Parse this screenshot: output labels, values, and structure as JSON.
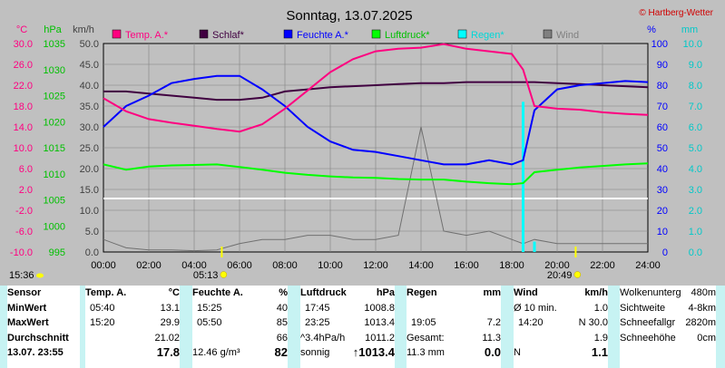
{
  "header": {
    "title": "Sonntag, 13.07.2025",
    "copyright": "© Hartberg-Wetter"
  },
  "axes_units": {
    "temp": "°C",
    "hpa": "hPa",
    "kmh": "km/h",
    "pct": "%",
    "mm": "mm"
  },
  "legend": [
    {
      "label": "Temp. A.*",
      "color": "#ff0080"
    },
    {
      "label": "Schlaf*",
      "color": "#400040"
    },
    {
      "label": "Feuchte A.*",
      "color": "#0000ff"
    },
    {
      "label": "Luftdruck*",
      "color": "#00ff00"
    },
    {
      "label": "Regen*",
      "color": "#00ffff"
    },
    {
      "label": "Wind",
      "color": "#808080"
    }
  ],
  "ticks": {
    "temp": [
      "30.0",
      "26.0",
      "22.0",
      "18.0",
      "14.0",
      "10.0",
      "6.0",
      "2.0",
      "-2.0",
      "-6.0",
      "-10.0"
    ],
    "hpa": [
      "1035",
      "1030",
      "1025",
      "1020",
      "1015",
      "1010",
      "1005",
      "1000",
      "995"
    ],
    "kmh": [
      "50.0",
      "45.0",
      "40.0",
      "35.0",
      "30.0",
      "25.0",
      "20.0",
      "15.0",
      "10.0",
      "5.0",
      "0.0"
    ],
    "pct": [
      "100",
      "90",
      "80",
      "70",
      "60",
      "50",
      "40",
      "30",
      "20",
      "10",
      "0"
    ],
    "mm": [
      "10.0",
      "9.0",
      "8.0",
      "7.0",
      "6.0",
      "5.0",
      "4.0",
      "3.0",
      "2.0",
      "1.0",
      "0.0"
    ],
    "x": [
      "00:00",
      "02:00",
      "04:00",
      "06:00",
      "08:00",
      "10:00",
      "12:00",
      "14:00",
      "16:00",
      "18:00",
      "20:00",
      "22:00",
      "24:00"
    ]
  },
  "sun": {
    "sunrise": "05:13",
    "sunset": "20:49",
    "moon": "15:36"
  },
  "chart_data": {
    "type": "line",
    "x_hours": [
      0,
      1,
      2,
      3,
      4,
      5,
      6,
      7,
      8,
      9,
      10,
      11,
      12,
      13,
      14,
      15,
      16,
      17,
      18,
      18.5,
      19,
      20,
      21,
      22,
      23,
      24
    ],
    "series": [
      {
        "name": "Temp. A.*",
        "unit": "°C",
        "values": [
          19.5,
          17.0,
          15.5,
          14.8,
          14.2,
          13.6,
          13.1,
          14.5,
          17.5,
          21.0,
          24.5,
          27.0,
          28.5,
          29.0,
          29.2,
          29.9,
          29.0,
          28.5,
          28.0,
          25.0,
          18.0,
          17.5,
          17.3,
          16.8,
          16.5,
          16.3
        ]
      },
      {
        "name": "Schlaf*",
        "unit": "%",
        "values": [
          77,
          77,
          76,
          75,
          74,
          73,
          73,
          74,
          77,
          78,
          79,
          79.5,
          80,
          80.5,
          81,
          81,
          81.5,
          81.5,
          81.5,
          81.5,
          81.5,
          81,
          80.5,
          80,
          79.5,
          79
        ]
      },
      {
        "name": "Feuchte A.*",
        "unit": "%",
        "values": [
          60,
          70,
          75,
          81,
          83,
          84.5,
          84.5,
          78,
          70,
          60,
          53,
          49,
          48,
          46,
          44,
          42,
          42,
          44,
          42,
          44,
          68,
          78,
          80,
          81,
          82,
          81.5
        ]
      },
      {
        "name": "Luftdruck*",
        "unit": "hPa",
        "values": [
          1011.8,
          1010.8,
          1011.4,
          1011.6,
          1011.7,
          1011.8,
          1011.3,
          1010.8,
          1010.2,
          1009.8,
          1009.5,
          1009.3,
          1009.2,
          1009.0,
          1008.9,
          1008.9,
          1008.5,
          1008.2,
          1008.0,
          1008.2,
          1010.3,
          1010.8,
          1011.2,
          1011.5,
          1011.8,
          1012.0
        ]
      },
      {
        "name": "Regen*",
        "unit": "mm",
        "values": [
          0,
          0,
          0,
          0,
          0,
          0,
          0,
          0,
          0,
          0,
          0,
          0,
          0,
          0,
          0,
          0,
          0,
          0,
          0,
          7.2,
          0.5,
          0,
          0,
          0,
          0,
          0
        ]
      },
      {
        "name": "Wind",
        "unit": "km/h",
        "values": [
          3,
          1,
          0.5,
          0.5,
          0.3,
          0.5,
          2,
          3,
          3,
          4,
          4,
          3,
          3,
          4,
          30,
          5,
          4,
          5,
          3,
          2,
          3,
          2,
          2,
          2,
          2,
          2
        ]
      }
    ]
  },
  "table": {
    "sensor": {
      "title": "Sensor",
      "min": "MinWert",
      "max": "MaxWert",
      "avg": "Durchschnitt",
      "now": "13.07. 23:55"
    },
    "temp": {
      "title": "Temp. A.",
      "unit": "°C",
      "min_t": "05:40",
      "min_v": "13.1",
      "max_t": "15:20",
      "max_v": "29.9",
      "avg_v": "21.02",
      "now_v": "17.8"
    },
    "hum": {
      "title": "Feuchte A.",
      "unit": "%",
      "min_t": "15:25",
      "min_v": "40",
      "max_t": "05:50",
      "max_v": "85",
      "avg_v": "66",
      "abs": "12.46 g/m³",
      "now_v": "82"
    },
    "press": {
      "title": "Luftdruck",
      "unit": "hPa",
      "min_t": "17:45",
      "min_v": "1008.8",
      "max_t": "23:25",
      "max_v": "1013.4",
      "trend_l": "^3.4hPa/h",
      "avg_v": "1011.2",
      "state": "sonnig",
      "now_v": "↑1013.4"
    },
    "rain": {
      "title": "Regen",
      "unit": "mm",
      "max_t": "19:05",
      "max_v": "7.2",
      "sum_l": "Gesamt:",
      "sum_v": "11.3",
      "now_t": "11.3 mm",
      "now_v": "0.0"
    },
    "wind": {
      "title": "Wind",
      "unit": "km/h",
      "avg_l": "Ø 10 min.",
      "avg_v": "1.0",
      "max_t": "14:20",
      "max_v": "N 30.0",
      "avg_v2": "1.9",
      "dir": "N",
      "now_v": "1.1"
    },
    "extra": [
      {
        "label": "Wolkenunterg",
        "value": "480m"
      },
      {
        "label": "Sichtweite",
        "value": "4-8km"
      },
      {
        "label": "Schneefallgr",
        "value": "2820m"
      },
      {
        "label": "Schneehöhe",
        "value": "0cm"
      }
    ]
  }
}
